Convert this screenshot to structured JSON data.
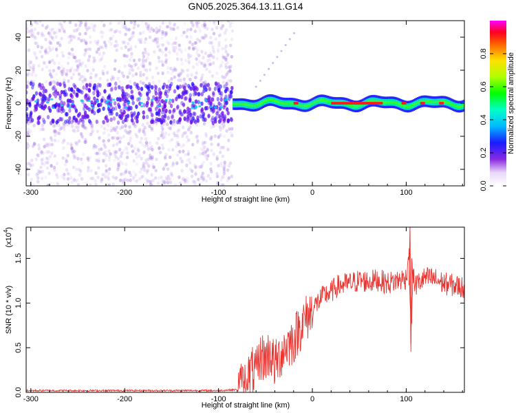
{
  "title": "GN05.2025.364.13.11.G14",
  "colors": {
    "snr_line": "#e8332f",
    "axis": "#000000",
    "background": "#ffffff"
  },
  "chart_data": [
    {
      "type": "heatmap",
      "xlabel": "Height of straight line (km)",
      "ylabel": "Frequency (Hz)",
      "xlim": [
        -305,
        162
      ],
      "ylim": [
        -50,
        50
      ],
      "xticks": [
        -300,
        -200,
        -100,
        0,
        100
      ],
      "xtick_labels": [
        "-300",
        "-200",
        "-100",
        "0",
        "100"
      ],
      "yticks": [
        -40,
        -20,
        0,
        20,
        40
      ],
      "ytick_labels": [
        "-40",
        "-20",
        "0",
        "20",
        "40"
      ],
      "colorbar": {
        "label": "Normalized spectral amplitude",
        "range": [
          0,
          1
        ],
        "ticks": [
          0.0,
          0.2,
          0.4,
          0.6,
          0.8
        ],
        "tick_labels": [
          "0.0",
          "0.2",
          "0.4",
          "0.6",
          "0.8"
        ],
        "colormap": "white-purple-blue-cyan-green-yellow-red-magenta"
      },
      "description_regions": [
        {
          "x_range": [
            -305,
            -85
          ],
          "pattern": "broadband noise scattered over full frequency range, concentrated near 0 Hz"
        },
        {
          "x_range": [
            -85,
            162
          ],
          "pattern": "narrow band near 0 Hz with high amplitude (red) segments"
        }
      ]
    },
    {
      "type": "line",
      "xlabel": "Height of straight line (km)",
      "ylabel": "SNR (10 * v/v)",
      "y_scale_label": "(x10",
      "y_scale_exponent": "4",
      "xlim": [
        -305,
        162
      ],
      "ylim": [
        0,
        1.85
      ],
      "xticks": [
        -300,
        -200,
        -100,
        0,
        100
      ],
      "xtick_labels": [
        "-300",
        "-200",
        "-100",
        "0",
        "100"
      ],
      "yticks": [
        0.0,
        0.5,
        1.0,
        1.5
      ],
      "ytick_labels": [
        "0.0",
        "0.5",
        "1.0",
        "1.5"
      ],
      "series": [
        {
          "x": [
            -305,
            -100,
            -80,
            -70,
            -65,
            -60,
            -55,
            -50,
            -45,
            -40,
            -35,
            -30,
            -25,
            -20,
            -15,
            -10,
            -5,
            0,
            5,
            10,
            15,
            20,
            25,
            30,
            40,
            50,
            60,
            70,
            80,
            90,
            100,
            103,
            105,
            107,
            110,
            120,
            130,
            140,
            150,
            162
          ],
          "y": [
            0.02,
            0.02,
            0.03,
            0.12,
            0.25,
            0.2,
            0.4,
            0.38,
            0.45,
            0.3,
            0.4,
            0.5,
            0.55,
            0.58,
            0.7,
            0.78,
            0.85,
            0.92,
            1.0,
            1.06,
            1.1,
            1.12,
            1.18,
            1.2,
            1.22,
            1.25,
            1.24,
            1.26,
            1.22,
            1.25,
            1.28,
            1.6,
            0.55,
            1.3,
            1.2,
            1.28,
            1.27,
            1.22,
            1.2,
            1.17
          ]
        }
      ]
    }
  ]
}
